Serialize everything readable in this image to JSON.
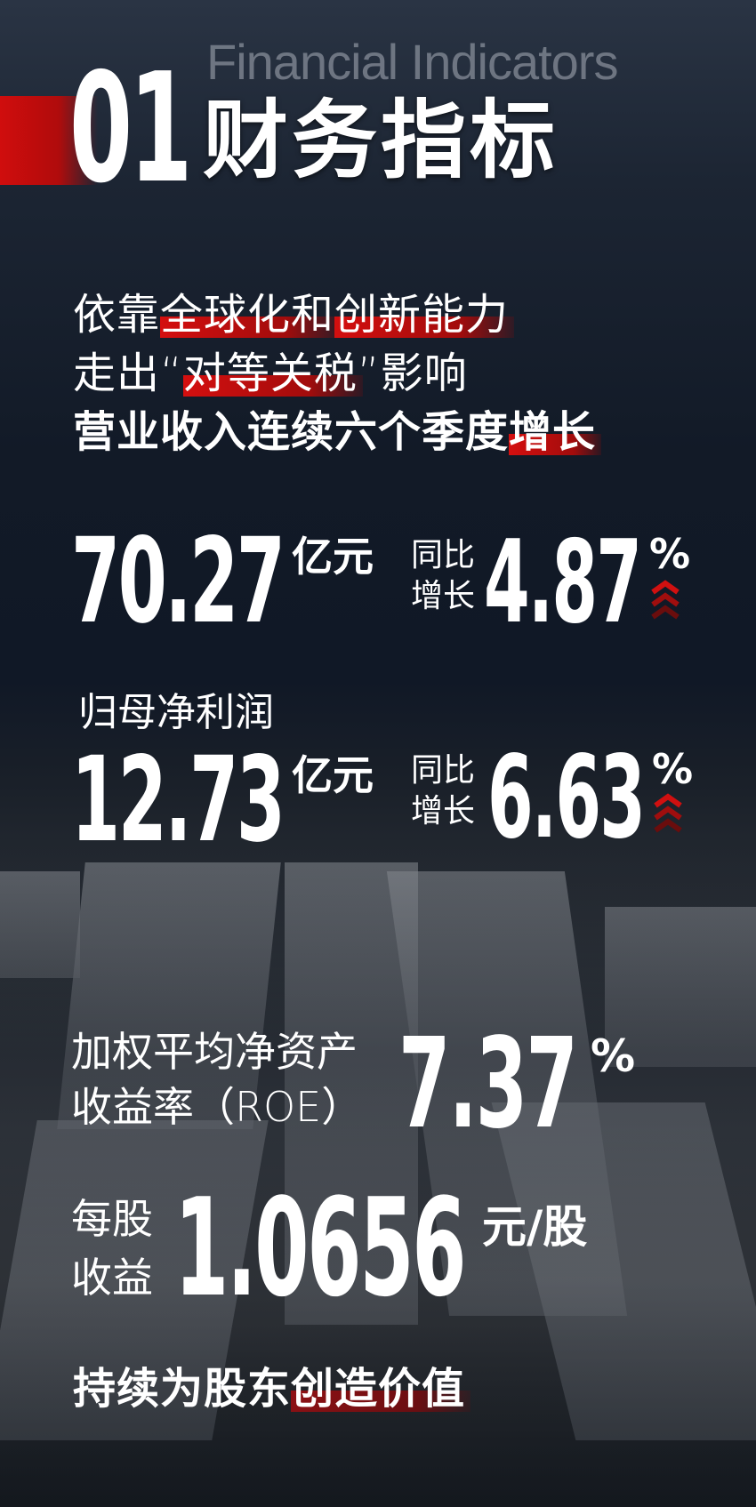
{
  "header": {
    "number": "01",
    "title_en": "Financial Indicators",
    "title_cn": "财务指标"
  },
  "intro": {
    "line1": {
      "pre": "依靠",
      "hl1": "全球化和",
      "hl2": "创新能力"
    },
    "line2": {
      "pre": "走出“",
      "hl": "对等关税",
      "post": "”影响"
    },
    "line3": {
      "pre": "营业收入连续六个季度",
      "hl": "增长"
    }
  },
  "revenue": {
    "value": "70.27",
    "unit": "亿元",
    "yoy_label_1": "同比",
    "yoy_label_2": "增长",
    "yoy_value": "4.87",
    "yoy_unit": "%",
    "trend_icon": "chevrons-up-icon"
  },
  "net_profit": {
    "label": "归母净利润",
    "value": "12.73",
    "unit": "亿元",
    "yoy_label_1": "同比",
    "yoy_label_2": "增长",
    "yoy_value": "6.63",
    "yoy_unit": "%",
    "trend_icon": "chevrons-up-icon"
  },
  "roe": {
    "label_1": "加权平均净资产",
    "label_2": "收益率（ROE）",
    "value": "7.37",
    "unit": "%"
  },
  "eps": {
    "label_1": "每股",
    "label_2": "收益",
    "value": "1.0656",
    "unit": "元/股"
  },
  "footer": {
    "pre": "持续为股东",
    "hl": "创造价值"
  },
  "colors": {
    "accent_red": "#d00d0d",
    "background": "#121a27",
    "text": "#ffffff"
  }
}
